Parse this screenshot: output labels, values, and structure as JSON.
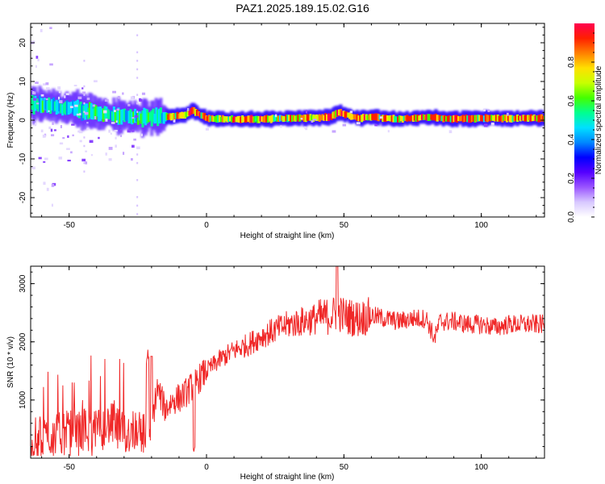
{
  "page_title": "PAZ1.2025.189.15.02.G16",
  "chart_data": [
    {
      "type": "heatmap",
      "xlabel": "Height of straight line (km)",
      "ylabel": "Frequency (Hz)",
      "xlim": [
        -64,
        123
      ],
      "ylim": [
        -25,
        25
      ],
      "xticks": [
        -50,
        0,
        50,
        100
      ],
      "yticks": [
        -20,
        -10,
        0,
        10,
        20
      ],
      "colorbar": {
        "label": "Normalized spectral amplitude",
        "range": [
          0,
          1
        ],
        "ticks": [
          "0.0",
          "0.2",
          "0.4",
          "0.6",
          "0.8"
        ],
        "colormap": [
          "#ffffff",
          "#d8c8ff",
          "#9a55ff",
          "#5500ff",
          "#0000ff",
          "#0088ff",
          "#00e0ff",
          "#00ff90",
          "#44ff00",
          "#c8ff00",
          "#ffe000",
          "#ff8000",
          "#ff2000",
          "#ff0050"
        ]
      },
      "ridge": {
        "x": [
          -63,
          -55,
          -45,
          -35,
          -25,
          -18,
          -12,
          -8,
          -5,
          0,
          10,
          20,
          30,
          40,
          45,
          48,
          55,
          60,
          70,
          80,
          90,
          100,
          110,
          123
        ],
        "y": [
          4,
          3.5,
          2.5,
          1.5,
          0.5,
          0.8,
          1.0,
          1.2,
          2.5,
          0.5,
          0.2,
          0.3,
          0.5,
          0.6,
          0.8,
          2.0,
          0.5,
          0.8,
          0.3,
          0.8,
          0.3,
          0.5,
          0.5,
          0.5
        ]
      }
    },
    {
      "type": "line",
      "xlabel": "Height of straight line (km)",
      "ylabel": "SNR (10 * v/v)",
      "xlim": [
        -64,
        123
      ],
      "ylim": [
        0,
        3300
      ],
      "xticks": [
        -50,
        0,
        50,
        100
      ],
      "yticks": [
        1000,
        2000,
        3000
      ],
      "color": "#f02828",
      "series": [
        {
          "x": [
            -64,
            -60,
            -55,
            -50,
            -45,
            -40,
            -35,
            -30,
            -25,
            -22,
            -20,
            -18,
            -15,
            -12,
            -9,
            -6,
            -3,
            0,
            5,
            10,
            15,
            20,
            25,
            30,
            35,
            40,
            45,
            48,
            50,
            55,
            60,
            65,
            70,
            75,
            80,
            83,
            85,
            90,
            95,
            100,
            105,
            110,
            115,
            123
          ],
          "y": [
            300,
            350,
            400,
            450,
            500,
            450,
            600,
            400,
            550,
            350,
            550,
            1200,
            850,
            1000,
            1050,
            1200,
            1350,
            1500,
            1700,
            1850,
            1950,
            2100,
            2200,
            2300,
            2350,
            2400,
            2450,
            2500,
            2450,
            2400,
            2450,
            2400,
            2350,
            2400,
            2400,
            2050,
            2350,
            2350,
            2300,
            2300,
            2250,
            2300,
            2300,
            2300
          ]
        }
      ]
    }
  ]
}
